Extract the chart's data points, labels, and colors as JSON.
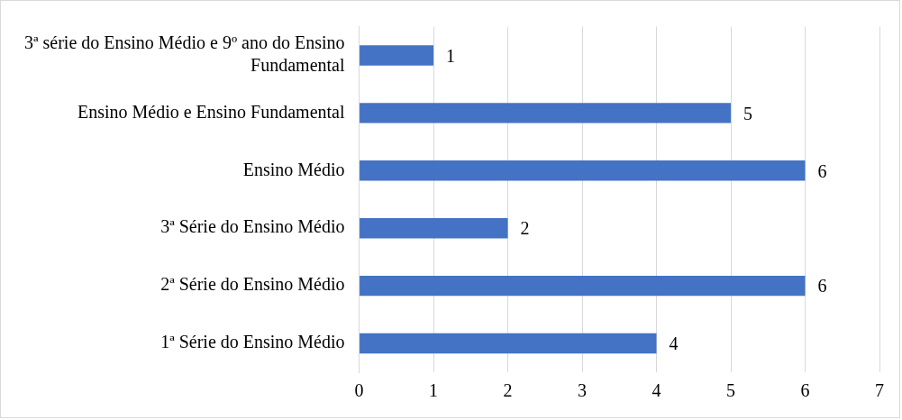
{
  "chart_data": {
    "type": "bar",
    "orientation": "horizontal",
    "categories": [
      "3ª série do Ensino Médio e 9º ano do Ensino Fundamental",
      "Ensino Médio e Ensino Fundamental",
      "Ensino Médio",
      "3ª Série do Ensino Médio",
      "2ª Série do Ensino Médio",
      "1ª Série do Ensino Médio"
    ],
    "values": [
      1,
      5,
      6,
      2,
      6,
      4
    ],
    "color": "#4472c4",
    "xlim": [
      0,
      7
    ],
    "xticks": [
      0,
      1,
      2,
      3,
      4,
      5,
      6,
      7
    ],
    "grid": "x",
    "data_labels": true,
    "legend": false
  }
}
